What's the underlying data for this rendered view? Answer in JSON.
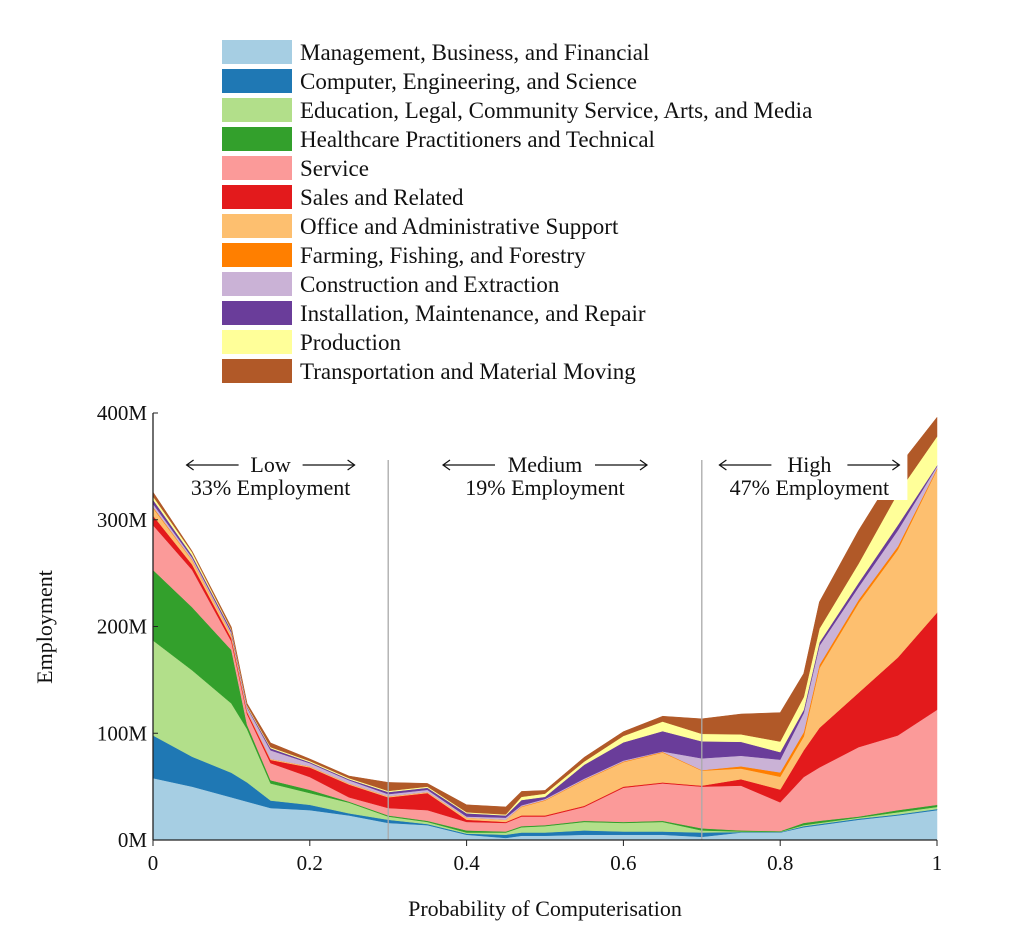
{
  "chart_data": {
    "type": "area",
    "stacked": true,
    "xlabel": "Probability of Computerisation",
    "ylabel": "Employment",
    "xlim": [
      0,
      1
    ],
    "ylim": [
      0,
      400
    ],
    "x_ticks": [
      "0",
      "0.2",
      "0.4",
      "0.6",
      "0.8",
      "1"
    ],
    "y_ticks": [
      "0M",
      "100M",
      "200M",
      "300M",
      "400M"
    ],
    "grid": false,
    "legend_position": "top",
    "x": [
      0,
      0.05,
      0.1,
      0.12,
      0.15,
      0.2,
      0.25,
      0.3,
      0.35,
      0.4,
      0.45,
      0.47,
      0.5,
      0.55,
      0.6,
      0.65,
      0.7,
      0.75,
      0.8,
      0.83,
      0.85,
      0.9,
      0.95,
      1
    ],
    "series": [
      {
        "name": "Management, Business, and Financial",
        "color": "#a6cee3",
        "values": [
          58,
          50,
          40,
          36,
          30,
          28,
          23,
          16,
          14,
          5,
          2,
          4,
          4,
          5,
          5,
          5,
          3,
          7,
          7,
          12,
          14,
          19,
          23,
          28
        ]
      },
      {
        "name": "Computer, Engineering, and Science",
        "color": "#1f78b4",
        "values": [
          40,
          28,
          23,
          18,
          7,
          5,
          2,
          3,
          1,
          1,
          3,
          3,
          3,
          4,
          3,
          3,
          4,
          0.5,
          0.5,
          1,
          1,
          1,
          1,
          1
        ]
      },
      {
        "name": "Education, Legal, Community Service, Arts, and Media",
        "color": "#b2df8a",
        "values": [
          89,
          81,
          65,
          50,
          16,
          11,
          10,
          3,
          2,
          1,
          2,
          5,
          6,
          8,
          8,
          9,
          2,
          0.5,
          0.3,
          1,
          1,
          1,
          2,
          2
        ]
      },
      {
        "name": "Healthcare Practitioners and Technical",
        "color": "#33a02c",
        "values": [
          66,
          59,
          50,
          4,
          3,
          3,
          1,
          1,
          1,
          2,
          1,
          1,
          1,
          1,
          1,
          1,
          2,
          1,
          0.5,
          2,
          2,
          1,
          2,
          2
        ]
      },
      {
        "name": "Service",
        "color": "#fb9a99",
        "values": [
          42,
          35,
          8,
          10,
          16,
          12,
          4,
          7,
          10,
          8,
          8,
          9,
          8,
          13,
          32,
          35,
          39,
          42,
          27,
          43,
          50,
          65,
          70,
          89
        ]
      },
      {
        "name": "Sales and Related",
        "color": "#e31a1c",
        "values": [
          9,
          5,
          3,
          2,
          3,
          9,
          12,
          10,
          16,
          2,
          1,
          1,
          1,
          1,
          1,
          1,
          1,
          6,
          12,
          25,
          37,
          51,
          73,
          91
        ]
      },
      {
        "name": "Office and Administrative Support",
        "color": "#fdbf6f",
        "values": [
          7,
          4,
          3,
          1,
          1,
          1,
          1,
          1,
          1,
          2,
          2,
          8,
          14,
          24,
          23,
          28,
          14,
          10,
          12,
          13,
          56,
          84,
          101,
          134
        ]
      },
      {
        "name": "Farming, Fishing, and Forestry",
        "color": "#ff7f00",
        "values": [
          1,
          0.5,
          0.3,
          0,
          0,
          0,
          0,
          0,
          0,
          0,
          0,
          0.5,
          0.5,
          0.5,
          0.5,
          0.5,
          0.5,
          2,
          4,
          4,
          3,
          3,
          3,
          1
        ]
      },
      {
        "name": "Construction and Extraction",
        "color": "#cab2d6",
        "values": [
          3,
          2,
          2,
          3,
          8,
          3,
          3,
          2,
          2,
          1,
          2,
          1,
          1,
          1,
          1,
          0.5,
          11,
          10,
          12,
          18,
          18,
          12,
          15,
          2
        ]
      },
      {
        "name": "Installation, Maintenance, and Repair",
        "color": "#6a3d9a",
        "values": [
          4,
          2,
          2,
          1,
          2,
          1,
          1,
          2,
          2,
          3,
          2,
          5,
          2,
          13,
          17,
          19,
          16,
          13,
          7,
          3,
          3,
          4,
          5,
          1
        ]
      },
      {
        "name": "Production",
        "color": "#ffff99",
        "values": [
          3,
          3,
          1,
          1,
          1,
          1,
          1,
          1,
          1,
          1,
          1,
          3,
          3,
          3,
          6,
          9,
          7,
          7,
          10,
          12,
          13,
          18,
          30,
          27
        ]
      },
      {
        "name": "Transportation and Material Moving",
        "color": "#b15928",
        "values": [
          4,
          1,
          2,
          2,
          4,
          2,
          2,
          8,
          3,
          7,
          7,
          5,
          3,
          4,
          4,
          5,
          14,
          19,
          27,
          22,
          25,
          31,
          24,
          18
        ]
      }
    ],
    "annotations": [
      {
        "label": "Low",
        "text": "33% Employment",
        "x_range": [
          0,
          0.3
        ]
      },
      {
        "label": "Medium",
        "text": "19% Employment",
        "x_range": [
          0.3,
          0.7
        ]
      },
      {
        "label": "High",
        "text": "47% Employment",
        "x_range": [
          0.7,
          1
        ]
      }
    ],
    "vlines": [
      0.3,
      0.7
    ]
  }
}
